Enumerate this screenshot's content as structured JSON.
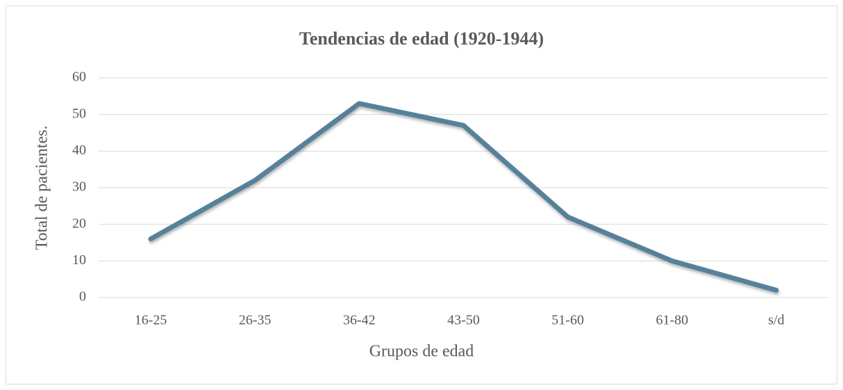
{
  "chart_data": {
    "type": "line",
    "title": "Tendencias de edad (1920-1944)",
    "x_label": "Grupos de edad",
    "y_label": "Total de pacientes.",
    "categories": [
      "16-25",
      "26-35",
      "36-42",
      "43-50",
      "51-60",
      "61-80",
      "s/d"
    ],
    "series": [
      {
        "name": "Total de pacientes.",
        "color": "#56819a",
        "values": [
          16,
          32,
          53,
          47,
          22,
          10,
          2
        ]
      }
    ],
    "ylim": [
      0,
      60
    ],
    "yticks": [
      0,
      10,
      20,
      30,
      40,
      50,
      60
    ],
    "grid": true
  }
}
